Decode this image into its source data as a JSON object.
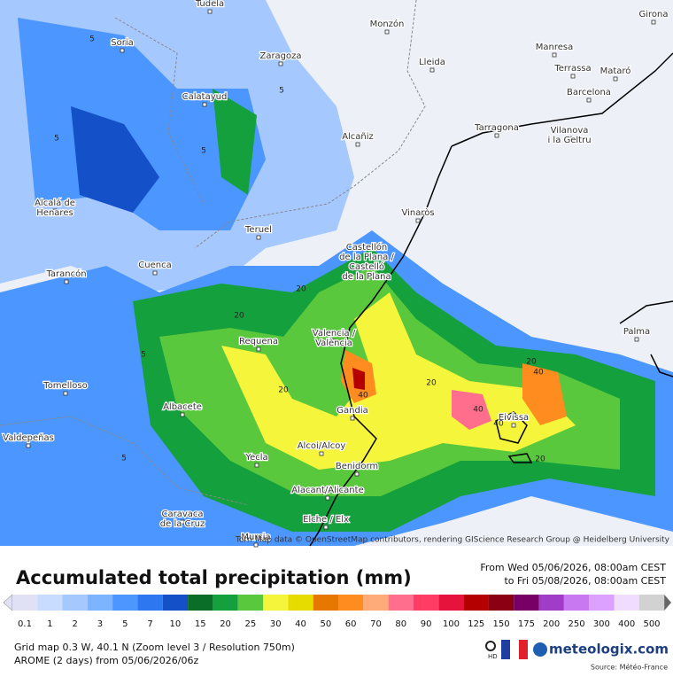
{
  "map": {
    "cities": [
      {
        "lines": [
          "Tudela"
        ]
      },
      {
        "lines": [
          "Monzón"
        ]
      },
      {
        "lines": [
          "Girona"
        ]
      },
      {
        "lines": [
          "Soria"
        ]
      },
      {
        "lines": [
          "Zaragoza"
        ]
      },
      {
        "lines": [
          "Lleida"
        ]
      },
      {
        "lines": [
          "Manresa"
        ]
      },
      {
        "lines": [
          "Terrassa"
        ]
      },
      {
        "lines": [
          "Mataró"
        ]
      },
      {
        "lines": [
          "Barcelona"
        ]
      },
      {
        "lines": [
          "Calatayud"
        ]
      },
      {
        "lines": [
          "Alcañiz"
        ]
      },
      {
        "lines": [
          "Tarragona"
        ]
      },
      {
        "lines": [
          "Vilanova",
          "i la Geltru"
        ]
      },
      {
        "lines": [
          "Alcalá de",
          "Henares"
        ]
      },
      {
        "lines": [
          "Vinaròs"
        ]
      },
      {
        "lines": [
          "Teruel"
        ]
      },
      {
        "lines": [
          "Castellón",
          "de la Plana /",
          "Castelló",
          "de la Plana"
        ]
      },
      {
        "lines": [
          "Cuenca"
        ]
      },
      {
        "lines": [
          "Tarancón"
        ]
      },
      {
        "lines": [
          "Palma"
        ]
      },
      {
        "lines": [
          "Valencia /",
          "València"
        ]
      },
      {
        "lines": [
          "Requena"
        ]
      },
      {
        "lines": [
          "Tomelloso"
        ]
      },
      {
        "lines": [
          "Albacete"
        ]
      },
      {
        "lines": [
          "Gandia"
        ]
      },
      {
        "lines": [
          "Eivissa"
        ]
      },
      {
        "lines": [
          "Valdepeñas"
        ]
      },
      {
        "lines": [
          "Alcoi/Alcoy"
        ]
      },
      {
        "lines": [
          "Yecla"
        ]
      },
      {
        "lines": [
          "Benidorm"
        ]
      },
      {
        "lines": [
          "Alacant/Alicante"
        ]
      },
      {
        "lines": [
          "Caravaca",
          "de la Cruz"
        ]
      },
      {
        "lines": [
          "Elche / Elx"
        ]
      },
      {
        "lines": [
          "Murcia"
        ]
      }
    ],
    "contour_labels": [
      "5",
      "5",
      "5",
      "5",
      "20",
      "20",
      "20",
      "20",
      "40",
      "40",
      "40",
      "40",
      "20",
      "5",
      "5",
      "20"
    ],
    "attribution": "Torri Map data © OpenStreetMap contributors, rendering GIScience Research Group @ Heidelberg University"
  },
  "header": {
    "title": "Accumulated total precipitation (mm)",
    "from": "From Wed 05/06/2026, 08:00am CEST",
    "to": "to Fri 05/08/2026, 08:00am CEST"
  },
  "legend": [
    {
      "value": 0.1,
      "color": "#e1e1f5"
    },
    {
      "value": 1,
      "color": "#c8dcff"
    },
    {
      "value": 2,
      "color": "#a5c8ff"
    },
    {
      "value": 3,
      "color": "#7db4ff"
    },
    {
      "value": 5,
      "color": "#4b96ff"
    },
    {
      "value": 7,
      "color": "#2d78f0"
    },
    {
      "value": 10,
      "color": "#1450c8"
    },
    {
      "value": 15,
      "color": "#0a6e28"
    },
    {
      "value": 20,
      "color": "#14a03c"
    },
    {
      "value": 25,
      "color": "#5ac83c"
    },
    {
      "value": 30,
      "color": "#f5f53c"
    },
    {
      "value": 40,
      "color": "#e6dc00"
    },
    {
      "value": 50,
      "color": "#e67800"
    },
    {
      "value": 60,
      "color": "#ff8c1e"
    },
    {
      "value": 70,
      "color": "#ffaa78"
    },
    {
      "value": 80,
      "color": "#ff6e8c"
    },
    {
      "value": 90,
      "color": "#ff3c64"
    },
    {
      "value": 100,
      "color": "#e6143c"
    },
    {
      "value": 125,
      "color": "#b40000"
    },
    {
      "value": 150,
      "color": "#8c0014"
    },
    {
      "value": 175,
      "color": "#780064"
    },
    {
      "value": 200,
      "color": "#a03cc8"
    },
    {
      "value": 250,
      "color": "#c878f0"
    },
    {
      "value": 300,
      "color": "#dca0ff"
    },
    {
      "value": 400,
      "color": "#f0dcff"
    },
    {
      "value": 500,
      "color": "#d2d2d2"
    }
  ],
  "footer": {
    "grid": "Grid map 0.3 W, 40.1 N (Zoom level 3 / Resolution 750m)",
    "model": "AROME (2 days) from 05/06/2026/06z",
    "hd": "HD",
    "brand": "meteologix.com",
    "source": "Source: Météo-France"
  }
}
